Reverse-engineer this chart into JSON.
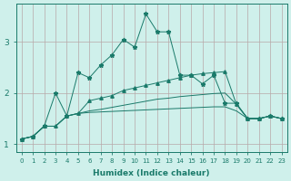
{
  "xlabel": "Humidex (Indice chaleur)",
  "x": [
    0,
    1,
    2,
    3,
    4,
    5,
    6,
    7,
    8,
    9,
    10,
    11,
    12,
    13,
    14,
    15,
    16,
    17,
    18,
    19,
    20,
    21,
    22,
    23
  ],
  "line_peak": [
    1.1,
    1.15,
    1.35,
    2.0,
    1.55,
    2.4,
    2.3,
    2.55,
    2.75,
    3.05,
    2.9,
    3.55,
    3.2,
    3.2,
    2.35,
    2.35,
    2.18,
    2.35,
    1.8,
    1.8,
    1.5,
    1.5,
    1.55,
    1.5
  ],
  "line_upper": [
    1.1,
    1.15,
    1.35,
    1.35,
    1.55,
    1.6,
    1.85,
    1.9,
    1.95,
    2.05,
    2.1,
    2.15,
    2.2,
    2.25,
    2.3,
    2.35,
    2.38,
    2.4,
    2.42,
    1.78,
    1.5,
    1.5,
    1.55,
    1.5
  ],
  "line_mid": [
    1.1,
    1.15,
    1.35,
    1.35,
    1.55,
    1.6,
    1.65,
    1.68,
    1.72,
    1.76,
    1.8,
    1.84,
    1.88,
    1.9,
    1.93,
    1.95,
    1.97,
    1.99,
    2.0,
    1.78,
    1.5,
    1.5,
    1.55,
    1.5
  ],
  "line_base": [
    1.1,
    1.15,
    1.35,
    1.35,
    1.55,
    1.6,
    1.62,
    1.63,
    1.64,
    1.65,
    1.66,
    1.67,
    1.68,
    1.69,
    1.7,
    1.71,
    1.72,
    1.73,
    1.73,
    1.65,
    1.5,
    1.5,
    1.55,
    1.5
  ],
  "bg_color": "#cff0eb",
  "grid_color_major": "#b8a8a8",
  "grid_color_minor": "#d0c0c0",
  "line_color": "#1a7a6a",
  "ylim": [
    0.85,
    3.75
  ],
  "yticks": [
    1,
    2,
    3
  ],
  "xlim": [
    -0.5,
    23.5
  ]
}
